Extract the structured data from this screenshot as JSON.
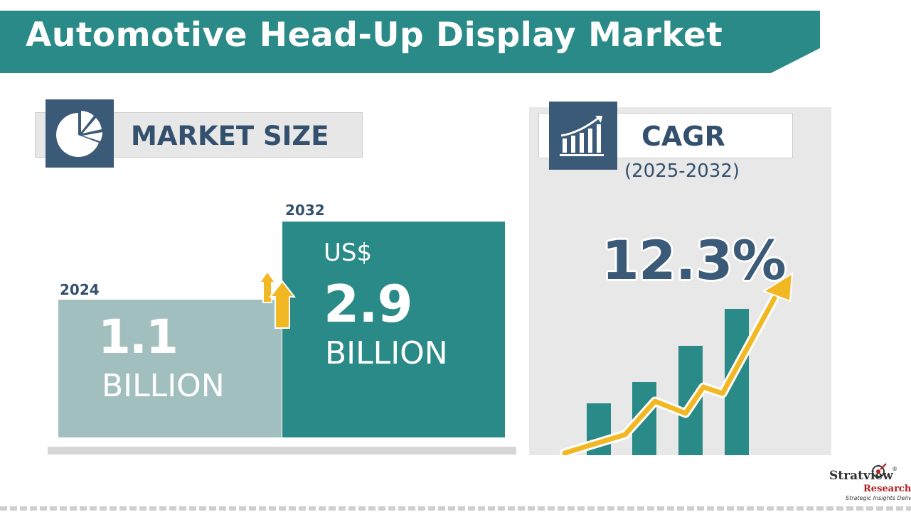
{
  "header": {
    "title": "Automotive Head-Up Display Market"
  },
  "market_size": {
    "label": "MARKET SIZE",
    "icon": "pie-chart-icon",
    "bars": [
      {
        "year": "2024",
        "value": "1.1",
        "unit": "BILLION"
      },
      {
        "year": "2032",
        "currency": "US$",
        "value": "2.9",
        "unit": "BILLION"
      }
    ]
  },
  "cagr": {
    "label": "CAGR",
    "icon": "growth-chart-icon",
    "period": "(2025-2032)",
    "value": "12.3%"
  },
  "logo": {
    "name": "Stratview",
    "sub": "Research",
    "tagline": "Strategic Insights Delivered",
    "registered": "®"
  },
  "colors": {
    "teal": "#2a8a87",
    "light_teal": "#a1bfbe",
    "navy": "#3b5a78",
    "arrow_yellow": "#f2b824"
  }
}
